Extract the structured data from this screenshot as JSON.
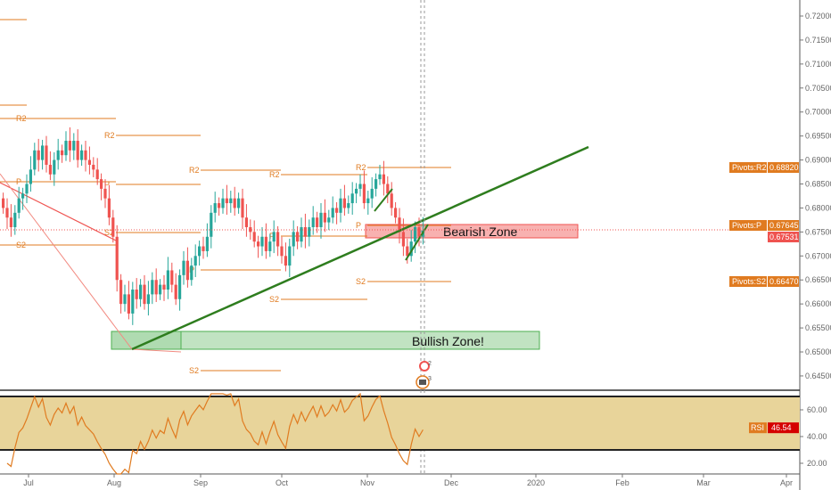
{
  "chart_data": {
    "type": "candlestick",
    "instrument_axis": "price",
    "price_ticks": [
      "0.72000",
      "0.71500",
      "0.71000",
      "0.70500",
      "0.70000",
      "0.69500",
      "0.69000",
      "0.68500",
      "0.68000",
      "0.67500",
      "0.67000",
      "0.66500",
      "0.66000",
      "0.65500",
      "0.65000",
      "0.64500"
    ],
    "price_range": [
      0.6425,
      0.7225
    ],
    "time_ticks": [
      "Jul",
      "Aug",
      "Sep",
      "Oct",
      "Nov",
      "Dec",
      "2020",
      "Feb",
      "Mar",
      "Apr"
    ],
    "closes": [
      0.68,
      0.678,
      0.676,
      0.679,
      0.682,
      0.683,
      0.685,
      0.688,
      0.692,
      0.69,
      0.693,
      0.689,
      0.687,
      0.69,
      0.692,
      0.691,
      0.694,
      0.692,
      0.694,
      0.69,
      0.692,
      0.69,
      0.689,
      0.688,
      0.686,
      0.684,
      0.682,
      0.678,
      0.674,
      0.665,
      0.66,
      0.662,
      0.658,
      0.663,
      0.661,
      0.664,
      0.66,
      0.662,
      0.665,
      0.662,
      0.664,
      0.663,
      0.667,
      0.664,
      0.661,
      0.666,
      0.669,
      0.665,
      0.668,
      0.67,
      0.672,
      0.671,
      0.674,
      0.679,
      0.681,
      0.68,
      0.682,
      0.681,
      0.682,
      0.68,
      0.682,
      0.678,
      0.676,
      0.675,
      0.673,
      0.672,
      0.674,
      0.671,
      0.673,
      0.675,
      0.672,
      0.67,
      0.668,
      0.672,
      0.675,
      0.673,
      0.676,
      0.674,
      0.676,
      0.678,
      0.676,
      0.679,
      0.677,
      0.678,
      0.68,
      0.679,
      0.682,
      0.68,
      0.681,
      0.683,
      0.684,
      0.685,
      0.681,
      0.682,
      0.684,
      0.686,
      0.687,
      0.685,
      0.683,
      0.68,
      0.678,
      0.675,
      0.672,
      0.67,
      0.673,
      0.676,
      0.674,
      0.6753
    ],
    "pivot_labels": {
      "r2": "R2",
      "p": "P",
      "s2": "S2"
    },
    "price_tags": [
      {
        "label": "Pivots:R2",
        "value": "0.68820",
        "color": "#e07b20"
      },
      {
        "label": "Pivots:P",
        "value": "0.67645",
        "color": "#e07b20"
      },
      {
        "label": "",
        "value": "0.67531",
        "color": "#ef5350"
      },
      {
        "label": "Pivots:S2",
        "value": "0.66470",
        "color": "#e07b20"
      }
    ],
    "zones": {
      "bearish": "Bearish Zone",
      "bullish": "Bullish Zone!"
    },
    "rsi": {
      "label": "RSI",
      "value": "46.54",
      "ticks": [
        "60.00",
        "40.00",
        "20.00"
      ],
      "band": [
        30,
        70
      ]
    },
    "event_badges": [
      "2",
      "3"
    ],
    "colors": {
      "up": "#26a69a",
      "down": "#ef5350",
      "pivot": "#e07b20",
      "trend": "#2e7d1e",
      "rsi": "#e07b20",
      "band": "#e8d49a"
    }
  }
}
